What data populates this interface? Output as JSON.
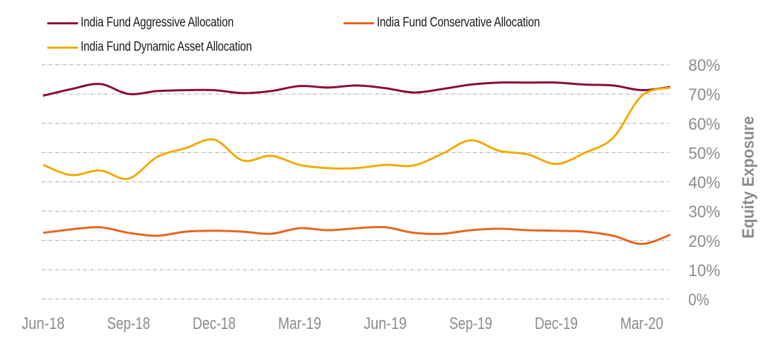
{
  "chart_data": {
    "type": "line",
    "title": "",
    "xlabel": "",
    "ylabel": "Equity Exposure",
    "y_axis_side": "right",
    "ylim": [
      0,
      80
    ],
    "y_ticks": [
      0,
      10,
      20,
      30,
      40,
      50,
      60,
      70,
      80
    ],
    "y_tick_labels": [
      "0%",
      "10%",
      "20%",
      "30%",
      "40%",
      "50%",
      "60%",
      "70%",
      "80%"
    ],
    "grid": true,
    "grid_style": "dash-dot horizontal",
    "legend_placement": "top-left",
    "x": [
      "Jun-18",
      "Jul-18",
      "Aug-18",
      "Sep-18",
      "Oct-18",
      "Nov-18",
      "Dec-18",
      "Jan-19",
      "Feb-19",
      "Mar-19",
      "Apr-19",
      "May-19",
      "Jun-19",
      "Jul-19",
      "Aug-19",
      "Sep-19",
      "Oct-19",
      "Nov-19",
      "Dec-19",
      "Jan-20",
      "Feb-20",
      "Mar-20",
      "Apr-20"
    ],
    "x_tick_labels": [
      "Jun-18",
      "Sep-18",
      "Dec-18",
      "Mar-19",
      "Jun-19",
      "Sep-19",
      "Dec-19",
      "Mar-20"
    ],
    "series": [
      {
        "name": "India Fund Aggressive Allocation",
        "color": "#8b0a32",
        "values": [
          69.4,
          71.7,
          73.4,
          70.0,
          71.0,
          71.3,
          71.3,
          70.3,
          71.0,
          72.7,
          72.2,
          72.9,
          72.0,
          70.5,
          71.7,
          73.2,
          73.9,
          73.9,
          73.9,
          73.2,
          72.9,
          71.3,
          72.4
        ]
      },
      {
        "name": "India Fund Conservative Allocation",
        "color": "#e8641b",
        "values": [
          22.6,
          23.8,
          24.5,
          22.6,
          21.6,
          23.0,
          23.3,
          23.0,
          22.3,
          24.2,
          23.5,
          24.2,
          24.5,
          22.6,
          22.3,
          23.5,
          24.0,
          23.5,
          23.3,
          23.0,
          21.6,
          18.8,
          21.9
        ]
      },
      {
        "name": "India Fund Dynamic Asset Allocation",
        "color": "#f2a900",
        "values": [
          45.8,
          42.3,
          43.9,
          41.1,
          48.5,
          51.5,
          54.4,
          47.3,
          48.9,
          45.8,
          44.7,
          44.7,
          45.8,
          45.6,
          49.6,
          54.2,
          50.6,
          49.4,
          46.1,
          49.9,
          55.1,
          69.4,
          72.2
        ]
      }
    ]
  }
}
